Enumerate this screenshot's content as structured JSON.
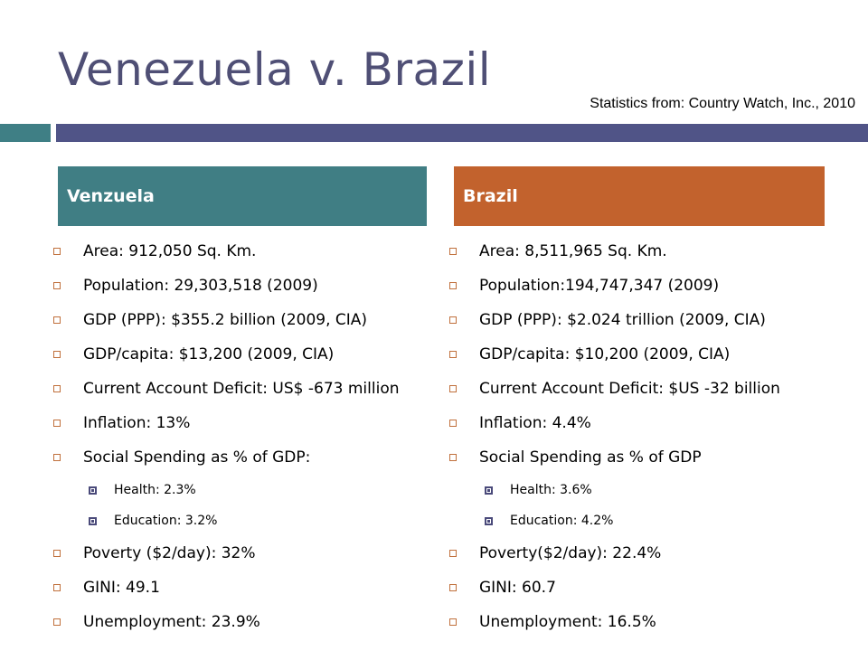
{
  "slide": {
    "title": "Venezuela v. Brazil",
    "source": "Statistics from: Country Watch, Inc., 2010"
  },
  "colors": {
    "title": "#4f4f75",
    "bar_left": "#3f7f85",
    "bar_right": "#505487",
    "venezuela_header": "#407e84",
    "brazil_header": "#c2622d",
    "bullet": "#c0703c",
    "sub_bullet": "#4a4a7a"
  },
  "venezuela": {
    "header": "Venzuela",
    "items": [
      {
        "text": "Area: 912,050 Sq. Km.",
        "level": 1
      },
      {
        "text": "Population: 29,303,518 (2009)",
        "level": 1
      },
      {
        "text": "GDP (PPP): $355.2 billion (2009, CIA)",
        "level": 1
      },
      {
        "text": "GDP/capita: $13,200 (2009, CIA)",
        "level": 1
      },
      {
        "text": "Current Account Deficit: US$ -673 million",
        "level": 1
      },
      {
        "text": "Inflation: 13%",
        "level": 1
      },
      {
        "text": "Social Spending as % of GDP:",
        "level": 1
      },
      {
        "text": "Health: 2.3%",
        "level": 2
      },
      {
        "text": "Education: 3.2%",
        "level": 2
      },
      {
        "text": "Poverty ($2/day):  32%",
        "level": 1
      },
      {
        "text": "GINI: 49.1",
        "level": 1
      },
      {
        "text": "Unemployment: 23.9%",
        "level": 1
      }
    ]
  },
  "brazil": {
    "header": "Brazil",
    "items": [
      {
        "text": "Area: 8,511,965 Sq. Km.",
        "level": 1
      },
      {
        "text": "Population:194,747,347 (2009)",
        "level": 1
      },
      {
        "text": "GDP (PPP): $2.024 trillion (2009, CIA)",
        "level": 1
      },
      {
        "text": "GDP/capita: $10,200 (2009, CIA)",
        "level": 1
      },
      {
        "text": "Current Account Deficit: $US -32 billion",
        "level": 1
      },
      {
        "text": "Inflation: 4.4%",
        "level": 1
      },
      {
        "text": "Social Spending as % of GDP",
        "level": 1
      },
      {
        "text": "Health: 3.6%",
        "level": 2
      },
      {
        "text": "Education: 4.2%",
        "level": 2
      },
      {
        "text": "Poverty($2/day): 22.4%",
        "level": 1
      },
      {
        "text": "GINI: 60.7",
        "level": 1
      },
      {
        "text": "Unemployment: 16.5%",
        "level": 1
      }
    ]
  }
}
